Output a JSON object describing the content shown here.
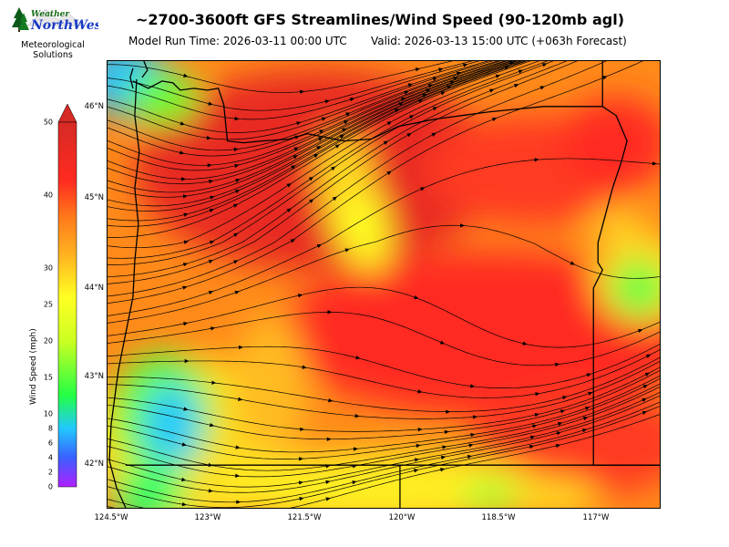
{
  "logo": {
    "brand_top": "Weather",
    "brand_main": "NorthWest",
    "caption_line1": "Meteorological",
    "caption_line2": "Solutions",
    "icon": "pine-tree-icon"
  },
  "header": {
    "title": "~2700-3600ft GFS Streamlines/Wind Speed (90-120mb agl)",
    "model_run": "Model Run Time: 2026-03-11 00:00 UTC",
    "valid": "Valid: 2026-03-13 15:00 UTC  (+063h Forecast)"
  },
  "colorbar": {
    "label": "Wind Speed (mph)",
    "ticks": [
      "50",
      "40",
      "30",
      "25",
      "20",
      "15",
      "10",
      "8",
      "6",
      "4",
      "2",
      "0"
    ],
    "colors": {
      "max": "#d62a25",
      "high": "#ff3322",
      "mid_high": "#ff9a1a",
      "mid": "#ffff22",
      "mid_low": "#22ff22",
      "low": "#22a0ff",
      "min": "#b020ff"
    }
  },
  "map": {
    "lat_labels": [
      "46°N",
      "45°N",
      "44°N",
      "43°N",
      "42°N"
    ],
    "lon_labels": [
      "124.5°W",
      "123°W",
      "121.5°W",
      "120°W",
      "118.5°W",
      "117°W"
    ]
  }
}
